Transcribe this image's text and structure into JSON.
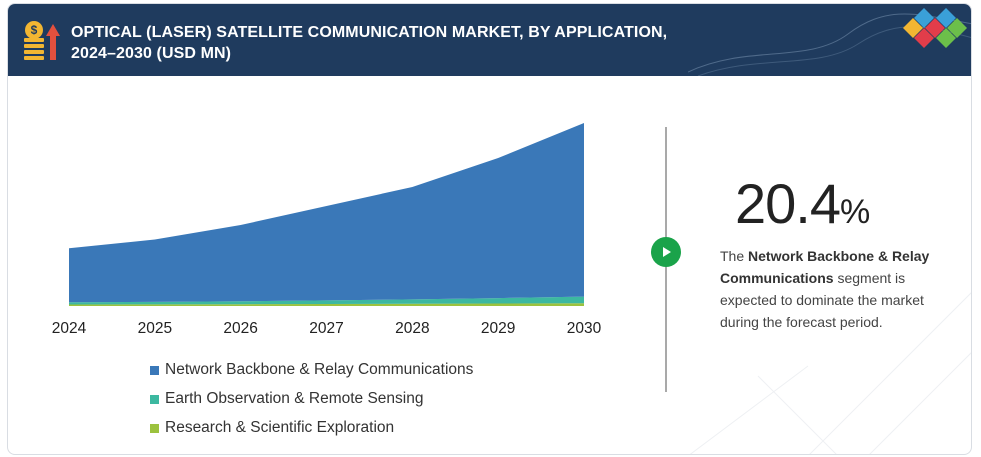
{
  "header": {
    "title_line1": "OPTICAL (LASER) SATELLITE COMMUNICATION MARKET, BY APPLICATION,",
    "title_line2": "2024–2030 (USD MN)"
  },
  "colors": {
    "header_bg": "#1f3b5e",
    "network": "#3a78b8",
    "earth": "#3cb8a0",
    "research": "#9cc23e",
    "accent_green": "#1aa34a"
  },
  "chart_data": {
    "type": "area",
    "stacked": true,
    "x": [
      "2024",
      "2025",
      "2026",
      "2027",
      "2028",
      "2029",
      "2030"
    ],
    "ylim": [
      0,
      185
    ],
    "y_axis_shown": false,
    "series": [
      {
        "name": "Research & Scientific Exploration",
        "color": "#9cc23e",
        "values": [
          1.5,
          1.6,
          1.8,
          2.0,
          2.2,
          2.5,
          2.8
        ]
      },
      {
        "name": "Earth Observation & Remote Sensing",
        "color": "#3cb8a0",
        "values": [
          2.2,
          2.5,
          3.0,
          3.6,
          4.4,
          5.4,
          6.6
        ]
      },
      {
        "name": "Network Backbone & Relay Communications",
        "color": "#3a78b8",
        "values": [
          54,
          62.4,
          76.2,
          94.4,
          112.4,
          140.1,
          173.6
        ]
      }
    ],
    "legend_position": "bottom",
    "grid": false
  },
  "legend": [
    {
      "label": "Network Backbone & Relay Communications",
      "color": "#3a78b8"
    },
    {
      "label": "Earth Observation & Remote Sensing",
      "color": "#3cb8a0"
    },
    {
      "label": "Research & Scientific Exploration",
      "color": "#9cc23e"
    }
  ],
  "stat": {
    "value": "20.4",
    "unit": "%"
  },
  "description": {
    "prefix": "The ",
    "highlight": "Network Backbone & Relay Communications",
    "suffix": " segment is expected to dominate the market during the forecast period."
  }
}
